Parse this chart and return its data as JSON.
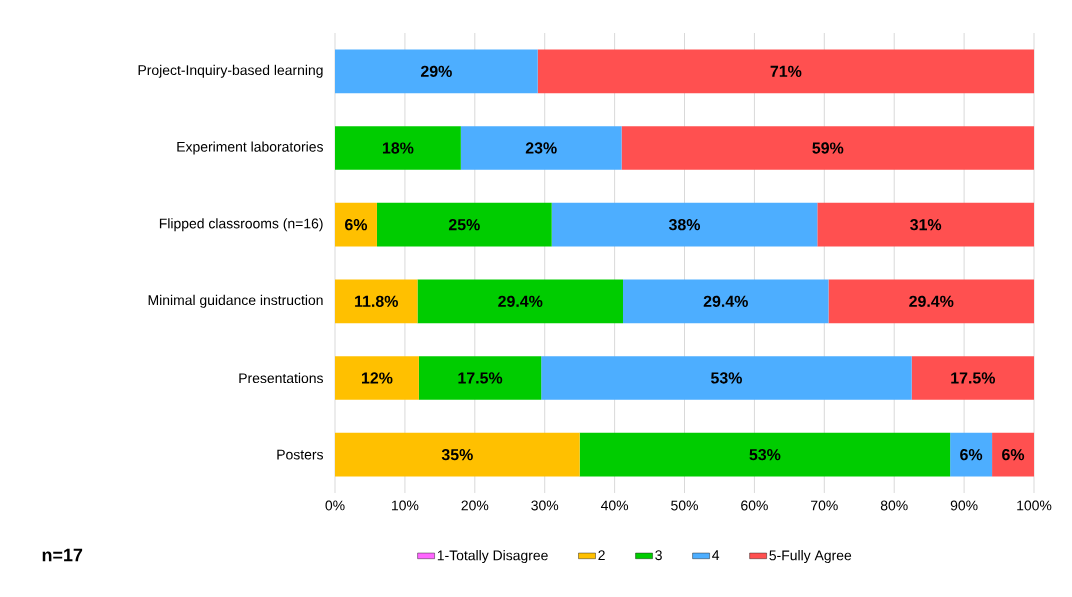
{
  "chart_data": {
    "type": "bar",
    "orientation": "horizontal",
    "stacked": true,
    "categories": [
      "Project-Inquiry-based learning",
      "Experiment laboratories",
      "Flipped classrooms (n=16)",
      "Minimal guidance instruction",
      "Presentations",
      "Posters"
    ],
    "series": [
      {
        "name": "1-Totally Disagree",
        "color": "#ff66ff",
        "values": [
          0,
          0,
          0,
          0,
          0,
          0
        ]
      },
      {
        "name": "2",
        "color": "#ffc000",
        "values": [
          0,
          0,
          6,
          11.8,
          12,
          35
        ],
        "value_labels": [
          null,
          null,
          "6%",
          "11.8%",
          "12%",
          "35%"
        ]
      },
      {
        "name": "3",
        "color": "#00cc00",
        "values": [
          0,
          18,
          25,
          29.4,
          17.5,
          53
        ],
        "value_labels": [
          null,
          "18%",
          "25%",
          "29.4%",
          "17.5%",
          "53%"
        ]
      },
      {
        "name": "4",
        "color": "#4daeff",
        "values": [
          29,
          23,
          38,
          29.4,
          53,
          6
        ],
        "value_labels": [
          "29%",
          "23%",
          "38%",
          "29.4%",
          "53%",
          "6%"
        ]
      },
      {
        "name": "5-Fully Agree",
        "color": "#ff5050",
        "values": [
          71,
          59,
          31,
          29.4,
          17.5,
          6
        ],
        "value_labels": [
          "71%",
          "59%",
          "31%",
          "29.4%",
          "17.5%",
          "6%"
        ]
      }
    ],
    "xlim": [
      0,
      100
    ],
    "xticks": [
      {
        "value": 0,
        "label": "0%"
      },
      {
        "value": 10,
        "label": "10%"
      },
      {
        "value": 20,
        "label": "20%"
      },
      {
        "value": 30,
        "label": "30%"
      },
      {
        "value": 40,
        "label": "40%"
      },
      {
        "value": 50,
        "label": "50%"
      },
      {
        "value": 60,
        "label": "60%"
      },
      {
        "value": 70,
        "label": "70%"
      },
      {
        "value": 80,
        "label": "80%"
      },
      {
        "value": 90,
        "label": "90%"
      },
      {
        "value": 100,
        "label": "100%"
      }
    ],
    "grid": "x",
    "legend": "bottom",
    "annotations": [
      "n=17"
    ]
  }
}
